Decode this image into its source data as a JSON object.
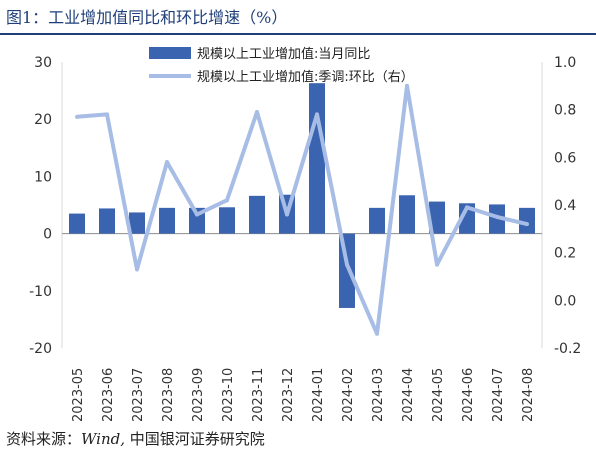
{
  "figure": {
    "title": "图1：工业增加值同比和环比增速（%）",
    "source_prefix": "资料来源：",
    "source_en": "Wind,",
    "source_suffix": " 中国银河证券研究院"
  },
  "chart_data": {
    "type": "bar+line",
    "title": "",
    "categories": [
      "2023-05",
      "2023-06",
      "2023-07",
      "2023-08",
      "2023-09",
      "2023-10",
      "2023-11",
      "2023-12",
      "2024-01",
      "2024-02",
      "2024-03",
      "2024-04",
      "2024-05",
      "2024-06",
      "2024-07",
      "2024-08"
    ],
    "y_left": {
      "lim": [
        -20,
        30
      ],
      "ticks": [
        "30",
        "20",
        "10",
        "0",
        "-10",
        "-20"
      ],
      "tick_values": [
        30,
        20,
        10,
        0,
        -10,
        -20
      ]
    },
    "y_right": {
      "lim": [
        -0.2,
        1.0
      ],
      "ticks": [
        "1.0",
        "0.8",
        "0.6",
        "0.4",
        "0.2",
        "0.0",
        "-0.2"
      ],
      "tick_values": [
        1.0,
        0.8,
        0.6,
        0.4,
        0.2,
        0.0,
        -0.2
      ]
    },
    "series": [
      {
        "name": "规模以上工业增加值:当月同比",
        "type": "bar",
        "axis": "left",
        "color": "#3a64b0",
        "values": [
          3.5,
          4.4,
          3.7,
          4.5,
          4.5,
          4.6,
          6.6,
          6.8,
          26.3,
          -13.0,
          4.5,
          6.7,
          5.6,
          5.3,
          5.1,
          4.5
        ]
      },
      {
        "name": "规模以上工业增加值:季调:环比（右）",
        "type": "line",
        "axis": "right",
        "color": "#a7bde6",
        "values": [
          0.77,
          0.78,
          0.13,
          0.58,
          0.36,
          0.42,
          0.79,
          0.36,
          0.78,
          0.15,
          -0.14,
          0.9,
          0.15,
          0.39,
          0.35,
          0.32
        ]
      }
    ],
    "legend_position": "top-center",
    "grid": false
  }
}
